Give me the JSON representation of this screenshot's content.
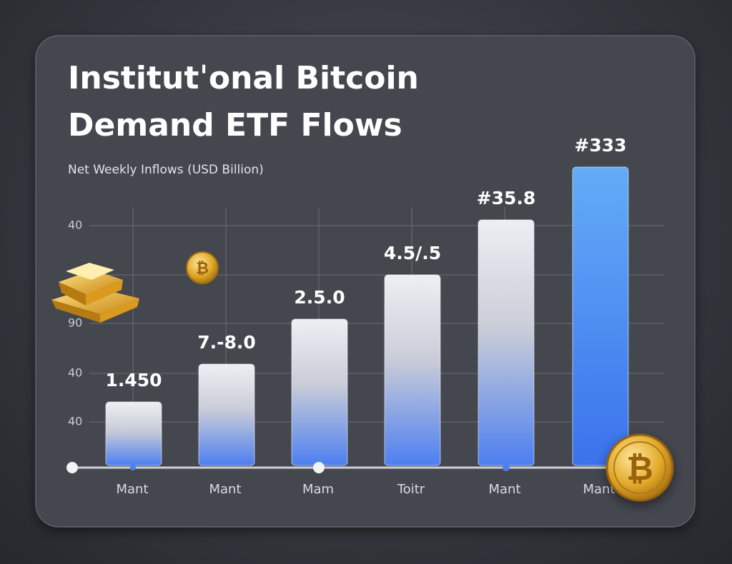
{
  "header": {
    "title_lines": [
      "Institutˈonal Bitcoin",
      "Demand ETF Flows"
    ],
    "subtitle": "Net Weekly Inflows (USD Billion)"
  },
  "axis": {
    "labels": [
      "40",
      "90",
      "40",
      "40"
    ]
  },
  "bars": [
    {
      "label": "1.450",
      "category": "Mant"
    },
    {
      "label": "7.-8.0",
      "category": "Mant"
    },
    {
      "label": "2.5.0",
      "category": "Mam"
    },
    {
      "label": "4.5/.5",
      "category": "Toitr"
    },
    {
      "label": "#35.8",
      "category": "Mant"
    },
    {
      "label": "#333",
      "category": "Mant"
    }
  ]
}
